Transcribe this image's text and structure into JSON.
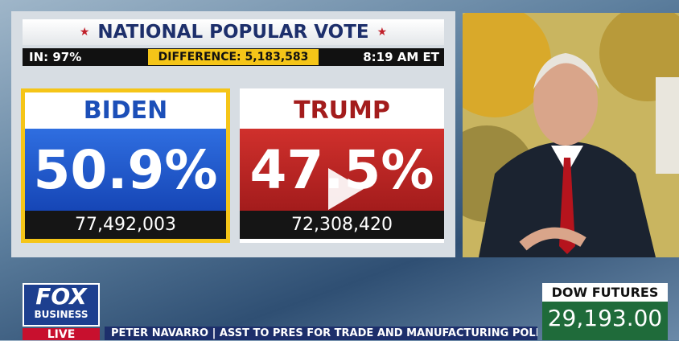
{
  "header": {
    "title": "NATIONAL POPULAR VOTE",
    "reporting": "IN: 97%",
    "difference": "DIFFERENCE: 5,183,583",
    "time": "8:19 AM ET"
  },
  "candidates": [
    {
      "name": "BIDEN",
      "percent": "50.9%",
      "votes": "77,492,003"
    },
    {
      "name": "TRUMP",
      "percent": "47.5%",
      "votes": "72,308,420"
    }
  ],
  "network": {
    "logo": "FOX",
    "sub": "BUSINESS",
    "live": "LIVE"
  },
  "lower_third": "PETER NAVARRO | ASST TO PRES FOR TRADE AND MANUFACTURING POLICY",
  "ticker": {
    "label": "DOW FUTURES",
    "value": "29,193.00"
  }
}
